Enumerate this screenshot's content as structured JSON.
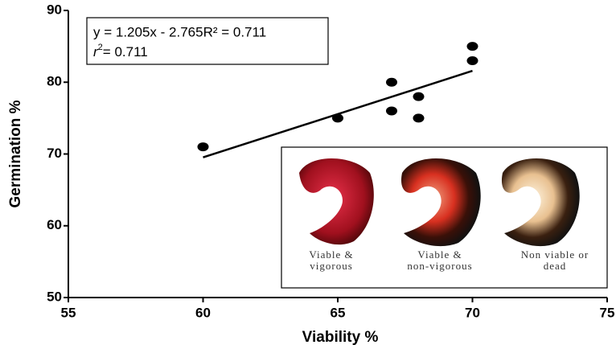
{
  "chart_data": {
    "type": "scatter",
    "x_label": "Viability %",
    "y_label": "Germination %",
    "x": [
      60,
      65,
      67,
      67,
      68,
      68,
      70,
      70
    ],
    "values": [
      71,
      75,
      80,
      76,
      78,
      75,
      85,
      83
    ],
    "color": "#000000",
    "xlim": [
      55,
      75
    ],
    "xticks": [
      55,
      60,
      65,
      70,
      75
    ],
    "ylim": [
      50,
      90
    ],
    "yticks": [
      50,
      60,
      70,
      80,
      90
    ],
    "trendline": {
      "slope": 1.205,
      "intercept": -2.765,
      "x": [
        60,
        70
      ]
    },
    "equation": "y = 1.205x - 2.765R² = 0.711",
    "r2_label": {
      "symbol": "r",
      "power": "2",
      "text": "= 0.711"
    },
    "inset": {
      "captions": [
        [
          "Viable &",
          "vigorous"
        ],
        [
          "Viable &",
          "non-vigorous"
        ],
        [
          "Non viable or",
          "dead"
        ]
      ]
    }
  }
}
